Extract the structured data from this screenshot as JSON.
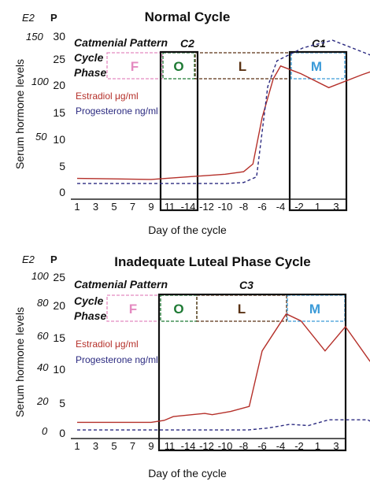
{
  "ylabel": "Serum hormone levels",
  "xlabel": "Day of the cycle",
  "unit_e2": "E2",
  "unit_p": "P",
  "pattern_label": "Catmenial Pattern",
  "cycle_phase_line1": "Cycle",
  "cycle_phase_line2": "Phase",
  "legend_estradiol": "Estradiol μg/ml",
  "legend_progesterone": "Progesterone ng/ml",
  "colors": {
    "estradiol": "#b5302a",
    "progesterone": "#2b2a80",
    "follicular": "#e48ac0",
    "ovulatory": "#1e7a34",
    "luteal": "#5a3214",
    "menstrual": "#3a9ad8"
  },
  "chart_data": [
    {
      "type": "line",
      "title": "Normal Cycle",
      "xlabel": "Day of the cycle",
      "ylabel": "Serum hormone levels",
      "x_ticks": [
        "1",
        "3",
        "5",
        "7",
        "9",
        "11",
        "-14",
        "-12",
        "-10",
        "-8",
        "-6",
        "-4",
        "-2",
        "1",
        "3"
      ],
      "yticks_e2": [
        "150",
        "100",
        "50"
      ],
      "yticks_p": [
        "30",
        "25",
        "20",
        "15",
        "10",
        "5",
        "0"
      ],
      "ylim_p": [
        0,
        30
      ],
      "phases": [
        {
          "letter": "F",
          "color": "follicular"
        },
        {
          "letter": "O",
          "color": "ovulatory"
        },
        {
          "letter": "L",
          "color": "luteal"
        },
        {
          "letter": "M",
          "color": "menstrual"
        }
      ],
      "box_labels": [
        "C2",
        "C1"
      ],
      "series": [
        {
          "name": "Estradiol μg/ml",
          "color": "estradiol",
          "style": "solid",
          "points": [
            [
              1,
              2.2
            ],
            [
              3,
              2.1
            ],
            [
              5,
              2.0
            ],
            [
              7,
              2.5
            ],
            [
              9,
              3.0
            ],
            [
              10,
              3.5
            ],
            [
              10.5,
              5.0
            ],
            [
              11,
              14.0
            ],
            [
              11.6,
              21.5
            ],
            [
              12,
              24.0
            ],
            [
              13.1,
              22.5
            ],
            [
              14.6,
              19.8
            ],
            [
              16.4,
              22.3
            ],
            [
              17.6,
              23.8
            ],
            [
              18.2,
              15.0
            ],
            [
              18.9,
              5.8
            ],
            [
              19.6,
              3.5
            ],
            [
              20.2,
              2.6
            ]
          ]
        },
        {
          "name": "Progesterone ng/ml",
          "color": "progesterone",
          "style": "dashed",
          "points": [
            [
              1,
              1.2
            ],
            [
              9,
              1.2
            ],
            [
              10,
              1.4
            ],
            [
              10.7,
              2.5
            ],
            [
              11.3,
              20.0
            ],
            [
              11.8,
              25.0
            ],
            [
              13.2,
              27.5
            ],
            [
              14.8,
              29.0
            ],
            [
              17.8,
              24.8
            ],
            [
              18.1,
              5.0
            ],
            [
              19.3,
              1.5
            ],
            [
              20.2,
              1.0
            ]
          ]
        }
      ]
    },
    {
      "type": "line",
      "title": "Inadequate Luteal Phase Cycle",
      "xlabel": "Day of the cycle",
      "ylabel": "Serum hormone levels",
      "x_ticks": [
        "1",
        "3",
        "5",
        "7",
        "9",
        "11",
        "-14",
        "-12",
        "-10",
        "-8",
        "-6",
        "-4",
        "-2",
        "1",
        "3"
      ],
      "yticks_e2": [
        "100",
        "80",
        "60",
        "40",
        "20",
        "0"
      ],
      "yticks_p": [
        "25",
        "20",
        "15",
        "10",
        "5",
        "0"
      ],
      "ylim_p": [
        0,
        25
      ],
      "phases": [
        {
          "letter": "F",
          "color": "follicular"
        },
        {
          "letter": "O",
          "color": "ovulatory"
        },
        {
          "letter": "L",
          "color": "luteal"
        },
        {
          "letter": "M",
          "color": "menstrual"
        }
      ],
      "box_labels": [
        "C3"
      ],
      "series": [
        {
          "name": "Estradiol μg/ml",
          "color": "estradiol",
          "style": "solid",
          "points": [
            [
              1,
              1.8
            ],
            [
              4,
              1.8
            ],
            [
              5,
              1.8
            ],
            [
              5.7,
              2.1
            ],
            [
              6.2,
              2.7
            ],
            [
              7.2,
              3.0
            ],
            [
              7.9,
              3.2
            ],
            [
              8.3,
              3.0
            ],
            [
              9.3,
              3.5
            ],
            [
              10.3,
              4.3
            ],
            [
              11,
              13.0
            ],
            [
              12.3,
              18.8
            ],
            [
              13.1,
              17.7
            ],
            [
              14.4,
              13.0
            ],
            [
              15.5,
              16.8
            ],
            [
              16.8,
              11.5
            ],
            [
              18.3,
              6.0
            ],
            [
              19.5,
              3.0
            ],
            [
              20.3,
              1.8
            ]
          ]
        },
        {
          "name": "Progesterone ng/ml",
          "color": "progesterone",
          "style": "dashed",
          "points": [
            [
              1,
              0.6
            ],
            [
              10.2,
              0.6
            ],
            [
              11.3,
              0.9
            ],
            [
              12.5,
              1.5
            ],
            [
              13.5,
              1.3
            ],
            [
              14.6,
              2.2
            ],
            [
              16.7,
              2.2
            ],
            [
              17.4,
              1.2
            ],
            [
              18.3,
              1.0
            ],
            [
              20.2,
              1.0
            ]
          ]
        }
      ]
    }
  ]
}
